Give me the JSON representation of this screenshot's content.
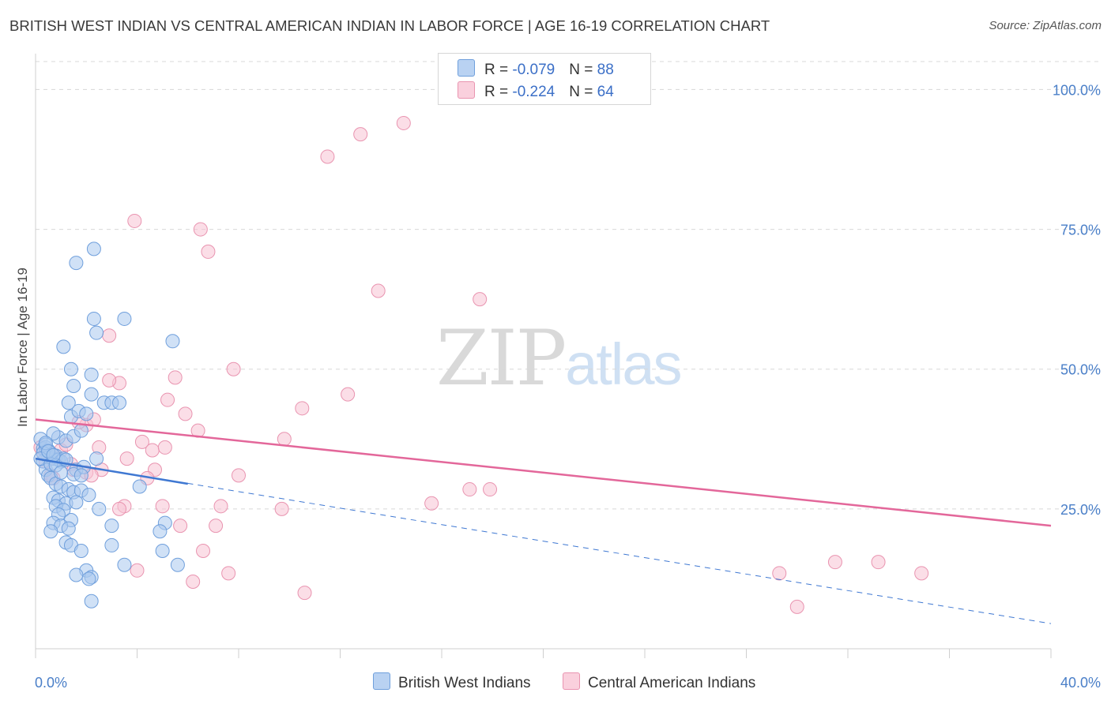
{
  "title": "BRITISH WEST INDIAN VS CENTRAL AMERICAN INDIAN IN LABOR FORCE | AGE 16-19 CORRELATION CHART",
  "source": "Source: ZipAtlas.com",
  "watermark": {
    "zip": "ZIP",
    "atlas": "atlas"
  },
  "legend": {
    "rows": [
      {
        "r_label": "R = ",
        "r_value": "-0.079",
        "n_label": "N = ",
        "n_value": "88"
      },
      {
        "r_label": "R = ",
        "r_value": "-0.224",
        "n_label": "N = ",
        "n_value": "64"
      }
    ]
  },
  "colors": {
    "blue_fill": "#a9c8ef",
    "blue_stroke": "#6f9fdc",
    "blue_line": "#3f78d2",
    "pink_fill": "#f7c3d3",
    "pink_stroke": "#e994b0",
    "pink_line": "#e3679a",
    "grid": "#d8d8d8",
    "tick_text": "#4a7fc8"
  },
  "chart_data": {
    "type": "scatter",
    "title": "BRITISH WEST INDIAN VS CENTRAL AMERICAN INDIAN IN LABOR FORCE | AGE 16-19 CORRELATION CHART",
    "xlabel": "",
    "ylabel": "In Labor Force | Age 16-19",
    "xlim": [
      0,
      40
    ],
    "ylim": [
      0,
      105
    ],
    "x_tick_labels": [
      "0.0%",
      "40.0%"
    ],
    "y_ticks": [
      25,
      50,
      75,
      100
    ],
    "y_tick_labels": [
      "25.0%",
      "50.0%",
      "75.0%",
      "100.0%"
    ],
    "grid": "horizontal dashed",
    "legend_position": "top-center",
    "series": [
      {
        "name": "British West Indians",
        "color": "#6f9fdc",
        "trend": {
          "x": [
            0,
            6.0
          ],
          "y": [
            34.0,
            29.5
          ],
          "extended_x": [
            0,
            40
          ],
          "extended_y": [
            34.0,
            4.5
          ]
        },
        "points": [
          [
            0.2,
            37.5
          ],
          [
            0.3,
            35.8
          ],
          [
            0.4,
            36.0
          ],
          [
            0.5,
            34.2
          ],
          [
            0.3,
            33.5
          ],
          [
            0.6,
            35.0
          ],
          [
            0.7,
            34.0
          ],
          [
            0.4,
            32.0
          ],
          [
            0.8,
            34.5
          ],
          [
            0.9,
            33.8
          ],
          [
            1.0,
            33.5
          ],
          [
            0.5,
            31.0
          ],
          [
            0.6,
            30.5
          ],
          [
            0.8,
            29.5
          ],
          [
            1.0,
            29.0
          ],
          [
            0.7,
            27.0
          ],
          [
            0.9,
            26.5
          ],
          [
            1.2,
            26.0
          ],
          [
            0.8,
            25.5
          ],
          [
            1.1,
            24.8
          ],
          [
            0.9,
            24.0
          ],
          [
            1.4,
            23.0
          ],
          [
            0.7,
            22.5
          ],
          [
            1.0,
            22.0
          ],
          [
            1.3,
            21.5
          ],
          [
            0.6,
            21.0
          ],
          [
            1.2,
            19.0
          ],
          [
            1.4,
            18.5
          ],
          [
            1.8,
            17.5
          ],
          [
            2.0,
            14.0
          ],
          [
            1.6,
            13.2
          ],
          [
            2.2,
            12.8
          ],
          [
            2.1,
            12.5
          ],
          [
            2.2,
            8.5
          ],
          [
            0.9,
            37.8
          ],
          [
            1.2,
            37.2
          ],
          [
            0.7,
            38.5
          ],
          [
            1.5,
            38.0
          ],
          [
            1.8,
            39.0
          ],
          [
            1.4,
            41.5
          ],
          [
            1.7,
            42.5
          ],
          [
            2.0,
            42.0
          ],
          [
            1.3,
            44.0
          ],
          [
            2.2,
            45.5
          ],
          [
            2.7,
            44.0
          ],
          [
            3.0,
            44.0
          ],
          [
            1.5,
            47.0
          ],
          [
            2.2,
            49.0
          ],
          [
            1.4,
            50.0
          ],
          [
            1.1,
            54.0
          ],
          [
            2.4,
            56.5
          ],
          [
            2.3,
            59.0
          ],
          [
            3.5,
            59.0
          ],
          [
            5.4,
            55.0
          ],
          [
            2.3,
            71.5
          ],
          [
            1.6,
            69.0
          ],
          [
            0.5,
            35.5
          ],
          [
            0.4,
            36.5
          ],
          [
            1.1,
            34.0
          ],
          [
            1.6,
            32.0
          ],
          [
            1.5,
            31.2
          ],
          [
            1.9,
            32.5
          ],
          [
            1.8,
            31.0
          ],
          [
            2.4,
            34.0
          ],
          [
            1.3,
            28.5
          ],
          [
            1.5,
            28.0
          ],
          [
            1.8,
            28.3
          ],
          [
            2.1,
            27.5
          ],
          [
            1.6,
            26.2
          ],
          [
            2.5,
            25.0
          ],
          [
            3.0,
            22.0
          ],
          [
            4.1,
            29.0
          ],
          [
            5.1,
            22.5
          ],
          [
            4.9,
            21.0
          ],
          [
            5.0,
            17.5
          ],
          [
            3.0,
            18.5
          ],
          [
            3.5,
            15.0
          ],
          [
            5.6,
            15.0
          ],
          [
            3.3,
            44.0
          ],
          [
            0.3,
            35.0
          ],
          [
            0.2,
            34.0
          ],
          [
            0.6,
            33.0
          ],
          [
            0.8,
            32.8
          ],
          [
            1.0,
            31.5
          ],
          [
            0.4,
            36.8
          ],
          [
            0.5,
            35.3
          ],
          [
            1.2,
            33.8
          ],
          [
            0.7,
            34.6
          ]
        ]
      },
      {
        "name": "Central American Indians",
        "color": "#e994b0",
        "trend": {
          "x": [
            0,
            40
          ],
          "y": [
            41.0,
            22.0
          ]
        },
        "points": [
          [
            0.2,
            36.0
          ],
          [
            0.3,
            35.0
          ],
          [
            0.5,
            34.5
          ],
          [
            0.8,
            34.0
          ],
          [
            0.4,
            33.5
          ],
          [
            0.6,
            31.0
          ],
          [
            0.7,
            30.5
          ],
          [
            1.0,
            35.5
          ],
          [
            1.2,
            36.5
          ],
          [
            1.4,
            33.0
          ],
          [
            1.5,
            32.0
          ],
          [
            2.0,
            40.0
          ],
          [
            2.3,
            41.0
          ],
          [
            1.7,
            40.5
          ],
          [
            2.5,
            36.0
          ],
          [
            2.6,
            32.0
          ],
          [
            2.0,
            31.5
          ],
          [
            2.2,
            31.0
          ],
          [
            3.3,
            47.5
          ],
          [
            2.9,
            48.0
          ],
          [
            2.9,
            56.0
          ],
          [
            3.6,
            34.0
          ],
          [
            4.2,
            37.0
          ],
          [
            4.6,
            35.5
          ],
          [
            5.1,
            36.0
          ],
          [
            4.7,
            32.0
          ],
          [
            4.4,
            30.5
          ],
          [
            5.2,
            44.5
          ],
          [
            5.5,
            48.5
          ],
          [
            5.9,
            42.0
          ],
          [
            6.4,
            39.0
          ],
          [
            4.0,
            14.0
          ],
          [
            3.5,
            25.5
          ],
          [
            3.3,
            25.0
          ],
          [
            5.0,
            25.5
          ],
          [
            5.7,
            22.0
          ],
          [
            6.6,
            17.5
          ],
          [
            6.2,
            12.0
          ],
          [
            7.1,
            22.0
          ],
          [
            7.6,
            13.5
          ],
          [
            7.3,
            25.5
          ],
          [
            8.0,
            31.0
          ],
          [
            7.8,
            50.0
          ],
          [
            9.8,
            37.5
          ],
          [
            9.7,
            25.0
          ],
          [
            10.5,
            43.0
          ],
          [
            10.6,
            10.0
          ],
          [
            12.3,
            45.5
          ],
          [
            15.6,
            26.0
          ],
          [
            17.1,
            28.5
          ],
          [
            17.9,
            28.5
          ],
          [
            13.5,
            64.0
          ],
          [
            17.5,
            62.5
          ],
          [
            11.5,
            88.0
          ],
          [
            12.8,
            92.0
          ],
          [
            14.5,
            94.0
          ],
          [
            3.9,
            76.5
          ],
          [
            6.5,
            75.0
          ],
          [
            6.8,
            71.0
          ],
          [
            29.3,
            13.5
          ],
          [
            30.0,
            7.5
          ],
          [
            31.5,
            15.5
          ],
          [
            33.2,
            15.5
          ],
          [
            34.9,
            13.5
          ]
        ]
      }
    ]
  },
  "bottom_legend": {
    "items": [
      {
        "label": "British West Indians"
      },
      {
        "label": "Central American Indians"
      }
    ]
  }
}
